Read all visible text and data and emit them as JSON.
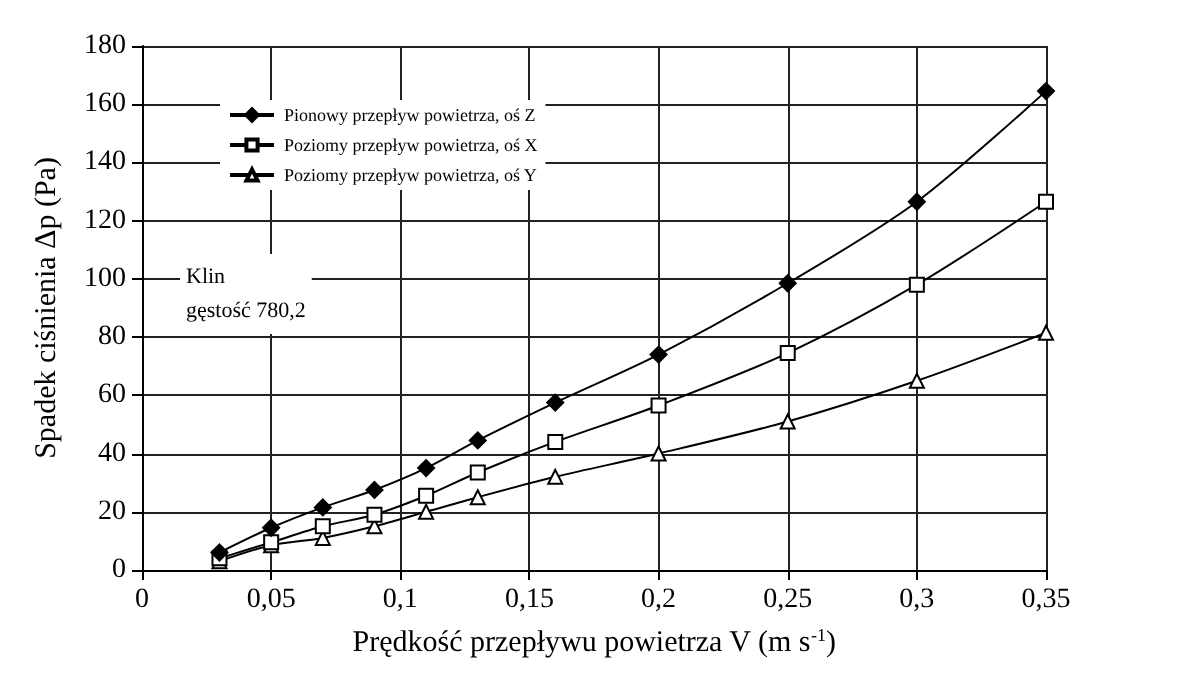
{
  "chart_data": {
    "type": "line",
    "xlabel": "Prędkość przepływu powietrza V (m s$^{-1}$)",
    "ylabel": "Spadek ciśnienia Δp (Pa)",
    "annotations": [
      "Klin\ngęstość 780,2"
    ],
    "x": [
      0.03,
      0.05,
      0.07,
      0.09,
      0.11,
      0.13,
      0.16,
      0.2,
      0.25,
      0.3,
      0.35
    ],
    "series": [
      {
        "name": "Pionowy przepływ powietrza, oś Z",
        "color": "#000000",
        "marker": "diamond",
        "values": [
          6,
          14.5,
          21.5,
          27.5,
          35,
          44.5,
          57.5,
          74,
          98.5,
          126.5,
          164.5
        ]
      },
      {
        "name": "Poziomy przepływ powietrza, oś X",
        "color": "#000000",
        "marker": "square",
        "values": [
          4,
          9.5,
          15,
          19,
          25.5,
          33.5,
          44,
          56.5,
          74.5,
          98,
          126.5
        ]
      },
      {
        "name": "Poziomy przepływ powietrza, oś Y",
        "color": "#000000",
        "marker": "triangle",
        "values": [
          3,
          8.5,
          11,
          15,
          20,
          25,
          32,
          40,
          51,
          65,
          81.5
        ]
      }
    ],
    "xlim": [
      0,
      0.35
    ],
    "xticks": [
      0,
      {
        "value": 0.05,
        "label": "0,05"
      },
      {
        "value": 0.1,
        "label": "0,1"
      },
      {
        "value": 0.15,
        "label": "0,15"
      },
      {
        "value": 0.2,
        "label": "0,2"
      },
      {
        "value": 0.25,
        "label": "0,25"
      },
      {
        "value": 0.3,
        "label": "0,3"
      },
      {
        "value": 0.35,
        "label": "0,35"
      }
    ],
    "ylim": [
      0,
      180
    ],
    "yticks": [
      0,
      20,
      40,
      60,
      80,
      100,
      120,
      140,
      160,
      180
    ],
    "grid": true,
    "legend": "top left",
    "line_style": "solid"
  }
}
